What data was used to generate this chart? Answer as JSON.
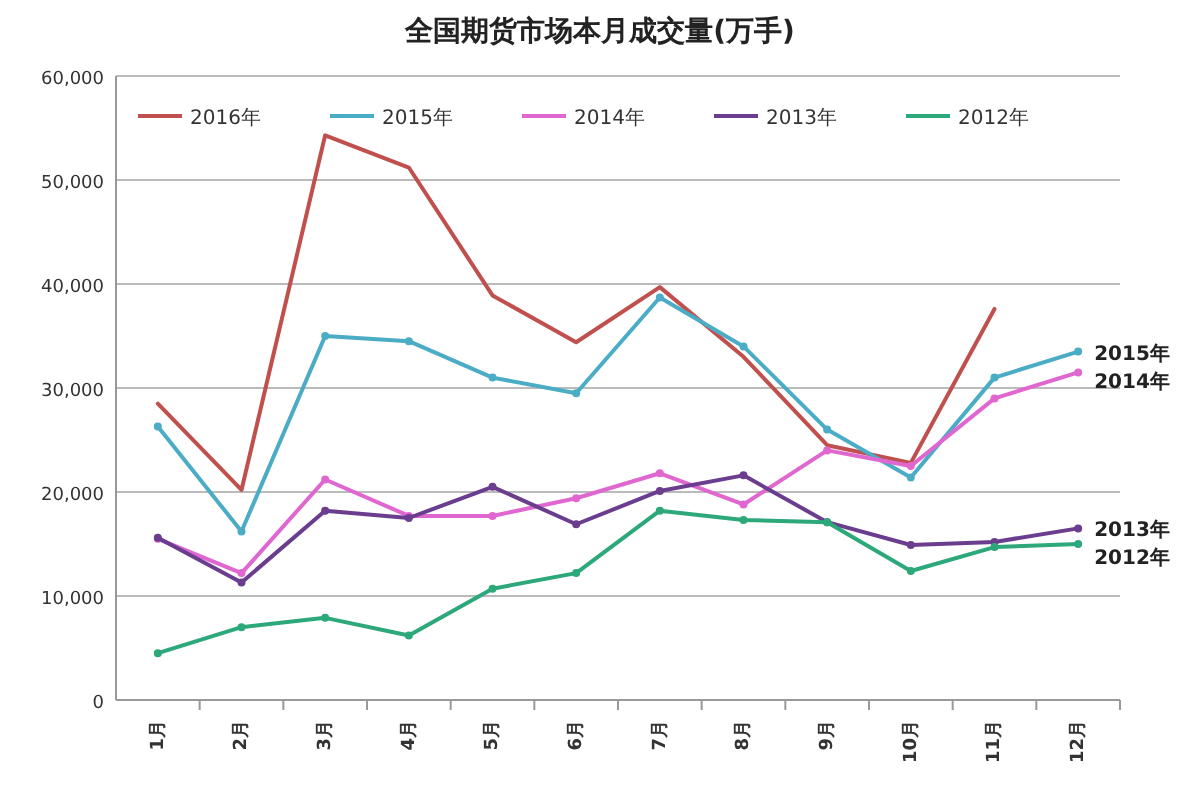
{
  "chart_data": {
    "type": "line",
    "title": "全国期货市场本月成交量(万手)",
    "categories": [
      "1月",
      "2月",
      "3月",
      "4月",
      "5月",
      "6月",
      "7月",
      "8月",
      "9月",
      "10月",
      "11月",
      "12月"
    ],
    "series": [
      {
        "name": "2016年",
        "color": "#c0504d",
        "marker": "none",
        "values": [
          28500,
          20200,
          54300,
          51200,
          38900,
          34400,
          39700,
          33000,
          24500,
          22800,
          37600,
          null
        ]
      },
      {
        "name": "2015年",
        "color": "#4bacc6",
        "values": [
          26300,
          16200,
          35000,
          34500,
          31000,
          29500,
          38700,
          34000,
          26000,
          21400,
          31000,
          33500
        ]
      },
      {
        "name": "2014年",
        "color": "#e066d0",
        "values": [
          15500,
          12200,
          21200,
          17700,
          17700,
          19400,
          21800,
          18800,
          24000,
          22500,
          29000,
          31500
        ]
      },
      {
        "name": "2013年",
        "color": "#6a3d8f",
        "values": [
          15600,
          11300,
          18200,
          17500,
          20500,
          16900,
          20100,
          21600,
          17100,
          14900,
          15200,
          16500
        ]
      },
      {
        "name": "2012年",
        "color": "#2ca87a",
        "values": [
          4500,
          7000,
          7900,
          6200,
          10700,
          12200,
          18200,
          17300,
          17100,
          12400,
          14700,
          15000
        ]
      }
    ],
    "ylim": [
      0,
      60000
    ],
    "yticks": [
      0,
      {
        "value": 10000,
        "label": "10,000"
      },
      {
        "value": 20000,
        "label": "20,000"
      },
      {
        "value": 30000,
        "label": "30,000"
      },
      {
        "value": 40000,
        "label": "40,000"
      },
      {
        "value": 50000,
        "label": "50,000"
      },
      {
        "value": 60000,
        "label": "60,000"
      }
    ],
    "annotations": [
      {
        "text": "2015年",
        "x": "12月",
        "y": 33500
      },
      {
        "text": "2014年",
        "x": "12月",
        "y": 31500
      },
      {
        "text": "2013年",
        "x": "12月",
        "y": 16500
      },
      {
        "text": "2012年",
        "x": "12月",
        "y": 15000
      }
    ],
    "grid": "y",
    "legend": "top",
    "marker": "circle",
    "line_style": "solid"
  }
}
